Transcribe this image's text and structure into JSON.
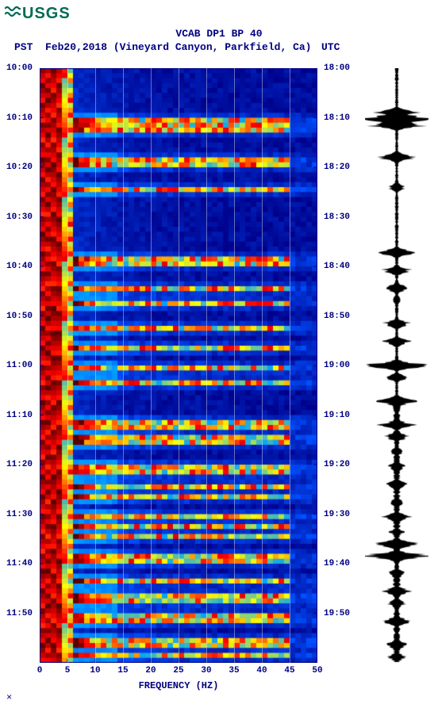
{
  "logo": {
    "text": "USGS",
    "color": "#006b54"
  },
  "title": "VCAB DP1 BP 40",
  "subtitle_pst": "PST",
  "subtitle_date": "Feb20,2018 (Vineyard Canyon, Parkfield, Ca)",
  "subtitle_utc": "UTC",
  "axes": {
    "x_label": "FREQUENCY (HZ)",
    "x_ticks": [
      0,
      5,
      10,
      15,
      20,
      25,
      30,
      35,
      40,
      45,
      50
    ],
    "xlim": [
      0,
      50
    ],
    "y_left_ticks": [
      "10:00",
      "10:10",
      "10:20",
      "10:30",
      "10:40",
      "10:50",
      "11:00",
      "11:10",
      "11:20",
      "11:30",
      "11:40",
      "11:50"
    ],
    "y_right_ticks": [
      "18:00",
      "18:10",
      "18:20",
      "18:30",
      "18:40",
      "18:50",
      "19:00",
      "19:10",
      "19:20",
      "19:30",
      "19:40",
      "19:50"
    ],
    "grid_x_every": 5,
    "grid_color": "#ffffff"
  },
  "colors": {
    "text": "#000080",
    "background": "#ffffff",
    "spectro_base": "#00008a",
    "spectro_mid": "#00a0ff",
    "spectro_hot1": "#ffff00",
    "spectro_hot2": "#ff0000",
    "spectro_dark": "#5a0000",
    "waveform": "#000000"
  },
  "spectrogram": {
    "type": "spectrogram",
    "rows": 120,
    "cols": 50,
    "event_rows": [
      10,
      11,
      12,
      18,
      19,
      24,
      38,
      39,
      44,
      47,
      52,
      56,
      60,
      63,
      71,
      72,
      74,
      75,
      80,
      81,
      84,
      86,
      90,
      92,
      94,
      98,
      99,
      103,
      106,
      107,
      110,
      111,
      115,
      116,
      118
    ],
    "low_band_width": 6
  },
  "waveform": {
    "type": "waveform",
    "events": [
      {
        "t": 0.075,
        "amp": 0.6
      },
      {
        "t": 0.085,
        "amp": 1.0
      },
      {
        "t": 0.095,
        "amp": 0.9
      },
      {
        "t": 0.15,
        "amp": 0.5
      },
      {
        "t": 0.2,
        "amp": 0.25
      },
      {
        "t": 0.31,
        "amp": 0.5
      },
      {
        "t": 0.34,
        "amp": 0.4
      },
      {
        "t": 0.37,
        "amp": 0.35
      },
      {
        "t": 0.39,
        "amp": 0.15
      },
      {
        "t": 0.43,
        "amp": 0.4
      },
      {
        "t": 0.46,
        "amp": 0.4
      },
      {
        "t": 0.5,
        "amp": 0.85
      },
      {
        "t": 0.52,
        "amp": 0.3
      },
      {
        "t": 0.56,
        "amp": 0.55
      },
      {
        "t": 0.6,
        "amp": 0.5
      },
      {
        "t": 0.62,
        "amp": 0.35
      },
      {
        "t": 0.645,
        "amp": 0.2
      },
      {
        "t": 0.67,
        "amp": 0.25
      },
      {
        "t": 0.7,
        "amp": 0.3
      },
      {
        "t": 0.73,
        "amp": 0.2
      },
      {
        "t": 0.755,
        "amp": 0.4
      },
      {
        "t": 0.78,
        "amp": 0.2
      },
      {
        "t": 0.8,
        "amp": 0.6
      },
      {
        "t": 0.82,
        "amp": 0.85
      },
      {
        "t": 0.85,
        "amp": 0.25
      },
      {
        "t": 0.88,
        "amp": 0.4
      },
      {
        "t": 0.9,
        "amp": 0.25
      },
      {
        "t": 0.93,
        "amp": 0.4
      },
      {
        "t": 0.97,
        "amp": 0.3
      },
      {
        "t": 0.99,
        "amp": 0.25
      }
    ],
    "base_noise": 0.04
  },
  "bottom_symbol": "×"
}
